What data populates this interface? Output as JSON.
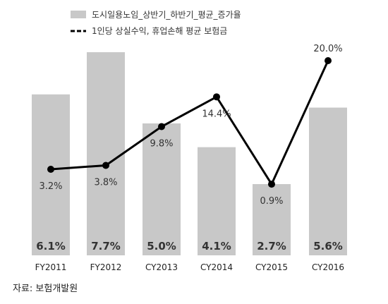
{
  "chart_data": {
    "type": "bar+line",
    "categories": [
      "FY2011",
      "FY2012",
      "CY2013",
      "CY2014",
      "CY2015",
      "CY2016"
    ],
    "series": [
      {
        "name": "도시일용노임_상반기_하반기_평균_증가율",
        "kind": "bar",
        "values": [
          6.1,
          7.7,
          5.0,
          4.1,
          2.7,
          5.6
        ],
        "labels": [
          "6.1%",
          "7.7%",
          "5.0%",
          "4.1%",
          "2.7%",
          "5.6%"
        ],
        "color": "#c8c8c8"
      },
      {
        "name": "1인당 상실수익, 휴업손해 평균 보험금",
        "kind": "line",
        "values": [
          3.2,
          3.8,
          9.8,
          14.4,
          0.9,
          20.0
        ],
        "labels": [
          "3.2%",
          "3.8%",
          "9.8%",
          "14.4%",
          "0.9%",
          "20.0%"
        ],
        "color": "#000000"
      }
    ],
    "legend_position": "top-right",
    "grid": false
  },
  "source_note": "자료: 보험개발원"
}
